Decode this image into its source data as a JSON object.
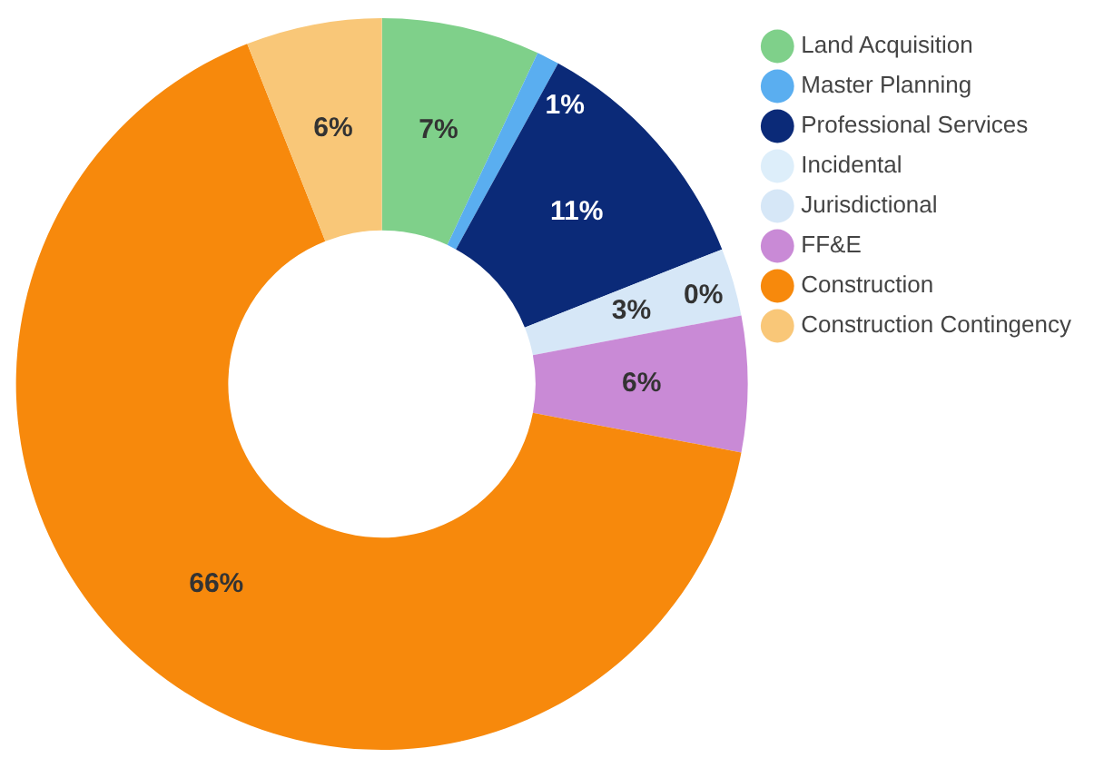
{
  "chart_data": {
    "type": "donut",
    "categories": [
      "Land Acquisition",
      "Master Planning",
      "Professional Services",
      "Incidental",
      "Jurisdictional",
      "FF&E",
      "Construction",
      "Construction Contingency"
    ],
    "values": [
      7,
      1,
      11,
      0,
      3,
      6,
      66,
      6
    ],
    "colors": [
      "#7fd08a",
      "#5aaef0",
      "#0b2a78",
      "#ddeefa",
      "#d6e7f7",
      "#c98ad6",
      "#f7890c",
      "#f9c778"
    ],
    "value_labels": [
      "7%",
      "1%",
      "11%",
      "0%",
      "3%",
      "6%",
      "66%",
      "6%"
    ],
    "legend": "top right"
  }
}
